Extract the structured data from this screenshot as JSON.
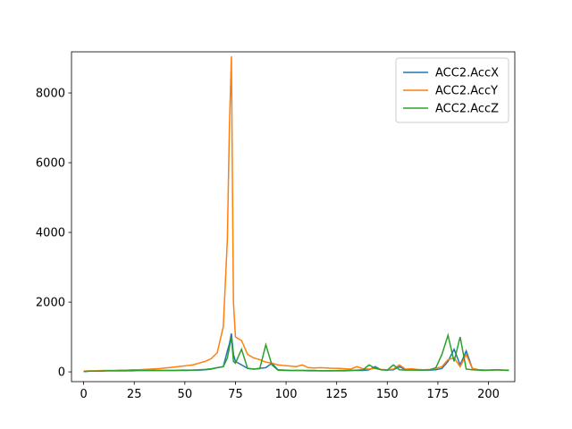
{
  "chart_data": {
    "type": "line",
    "x": [
      0,
      3,
      6,
      9,
      12,
      15,
      18,
      21,
      24,
      27,
      30,
      33,
      36,
      39,
      42,
      45,
      48,
      51,
      54,
      57,
      60,
      63,
      66,
      69,
      71,
      72,
      73,
      74,
      75,
      78,
      81,
      84,
      87,
      90,
      93,
      96,
      99,
      102,
      105,
      108,
      111,
      114,
      117,
      120,
      123,
      126,
      129,
      132,
      135,
      138,
      141,
      144,
      147,
      150,
      153,
      156,
      159,
      162,
      165,
      168,
      171,
      174,
      177,
      180,
      183,
      186,
      189,
      192,
      195,
      198,
      201,
      204,
      207,
      210
    ],
    "series": [
      {
        "name": "ACC2.AccX",
        "color": "#1f77b4",
        "values": [
          10,
          20,
          20,
          30,
          30,
          30,
          30,
          30,
          30,
          40,
          40,
          40,
          40,
          40,
          40,
          40,
          40,
          40,
          50,
          50,
          60,
          80,
          120,
          150,
          600,
          800,
          1100,
          500,
          300,
          200,
          100,
          80,
          100,
          120,
          250,
          60,
          50,
          40,
          40,
          40,
          40,
          40,
          30,
          30,
          30,
          30,
          30,
          40,
          40,
          40,
          60,
          150,
          60,
          50,
          60,
          150,
          60,
          60,
          50,
          50,
          50,
          60,
          100,
          300,
          650,
          200,
          600,
          100,
          60,
          50,
          50,
          60,
          50,
          50
        ]
      },
      {
        "name": "ACC2.AccY",
        "color": "#ff7f0e",
        "values": [
          20,
          30,
          30,
          40,
          40,
          40,
          50,
          50,
          60,
          60,
          70,
          80,
          90,
          100,
          120,
          140,
          160,
          180,
          200,
          250,
          300,
          380,
          550,
          1300,
          3800,
          7000,
          9050,
          2000,
          1000,
          900,
          500,
          400,
          350,
          280,
          250,
          200,
          180,
          170,
          150,
          200,
          120,
          110,
          120,
          110,
          100,
          100,
          90,
          80,
          150,
          90,
          80,
          100,
          70,
          60,
          80,
          200,
          80,
          90,
          70,
          60,
          70,
          100,
          150,
          350,
          400,
          150,
          500,
          100,
          60,
          50,
          50,
          60,
          50,
          40
        ]
      },
      {
        "name": "ACC2.AccZ",
        "color": "#2ca02c",
        "values": [
          10,
          20,
          20,
          20,
          30,
          30,
          30,
          30,
          40,
          40,
          40,
          40,
          40,
          40,
          40,
          40,
          50,
          50,
          50,
          60,
          70,
          90,
          120,
          150,
          400,
          700,
          1000,
          300,
          250,
          650,
          100,
          80,
          90,
          780,
          200,
          50,
          40,
          40,
          40,
          40,
          30,
          30,
          30,
          30,
          30,
          40,
          40,
          40,
          50,
          60,
          200,
          100,
          60,
          50,
          200,
          60,
          50,
          50,
          50,
          50,
          60,
          120,
          500,
          1050,
          300,
          1000,
          80,
          60,
          50,
          40,
          50,
          60,
          50,
          40
        ]
      }
    ],
    "xlim": [
      -6,
      213
    ],
    "ylim": [
      -280,
      9180
    ],
    "xticks": [
      0,
      25,
      50,
      75,
      100,
      125,
      150,
      175,
      200
    ],
    "yticks": [
      0,
      2000,
      4000,
      6000,
      8000
    ],
    "legend": "upper right"
  }
}
